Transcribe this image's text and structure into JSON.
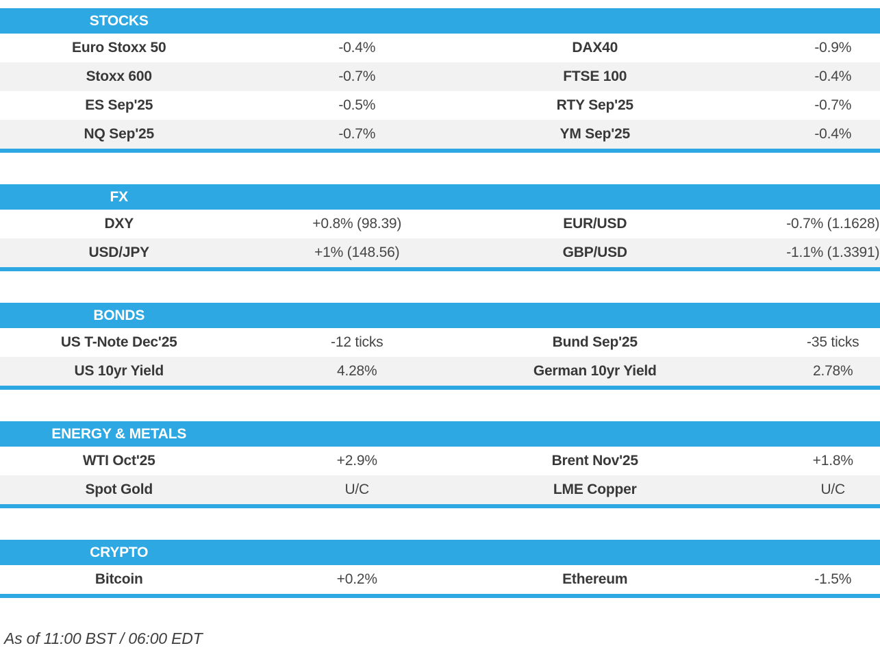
{
  "colors": {
    "accent": "#2da8e2",
    "row_stripe": "#f2f2f2",
    "header_text": "#ffffff",
    "body_text": "#383838"
  },
  "sections": [
    {
      "id": "stocks",
      "title": "STOCKS",
      "rows": [
        [
          {
            "name": "Euro Stoxx 50",
            "value": "-0.4%"
          },
          {
            "name": "DAX40",
            "value": "-0.9%"
          }
        ],
        [
          {
            "name": "Stoxx 600",
            "value": "-0.7%"
          },
          {
            "name": "FTSE 100",
            "value": "-0.4%"
          }
        ],
        [
          {
            "name": "ES Sep'25",
            "value": "-0.5%"
          },
          {
            "name": "RTY Sep'25",
            "value": "-0.7%"
          }
        ],
        [
          {
            "name": "NQ Sep'25",
            "value": "-0.7%"
          },
          {
            "name": "YM Sep'25",
            "value": "-0.4%"
          }
        ]
      ]
    },
    {
      "id": "fx",
      "title": "FX",
      "rows": [
        [
          {
            "name": "DXY",
            "value": "+0.8% (98.39)"
          },
          {
            "name": "EUR/USD",
            "value": "-0.7% (1.1628)"
          }
        ],
        [
          {
            "name": "USD/JPY",
            "value": "+1% (148.56)"
          },
          {
            "name": "GBP/USD",
            "value": "-1.1% (1.3391)"
          }
        ]
      ]
    },
    {
      "id": "bonds",
      "title": "BONDS",
      "rows": [
        [
          {
            "name": "US T-Note Dec'25",
            "value": "-12 ticks"
          },
          {
            "name": "Bund Sep'25",
            "value": "-35 ticks"
          }
        ],
        [
          {
            "name": "US 10yr Yield",
            "value": "4.28%"
          },
          {
            "name": "German 10yr Yield",
            "value": "2.78%"
          }
        ]
      ]
    },
    {
      "id": "energy-metals",
      "title": "ENERGY & METALS",
      "rows": [
        [
          {
            "name": "WTI Oct'25",
            "value": "+2.9%"
          },
          {
            "name": "Brent Nov'25",
            "value": "+1.8%"
          }
        ],
        [
          {
            "name": "Spot Gold",
            "value": "U/C"
          },
          {
            "name": "LME Copper",
            "value": "U/C"
          }
        ]
      ]
    },
    {
      "id": "crypto",
      "title": "CRYPTO",
      "rows": [
        [
          {
            "name": "Bitcoin",
            "value": "+0.2%"
          },
          {
            "name": "Ethereum",
            "value": "-1.5%"
          }
        ]
      ]
    }
  ],
  "footer": {
    "as_of": "As of 11:00 BST / 06:00 EDT"
  }
}
